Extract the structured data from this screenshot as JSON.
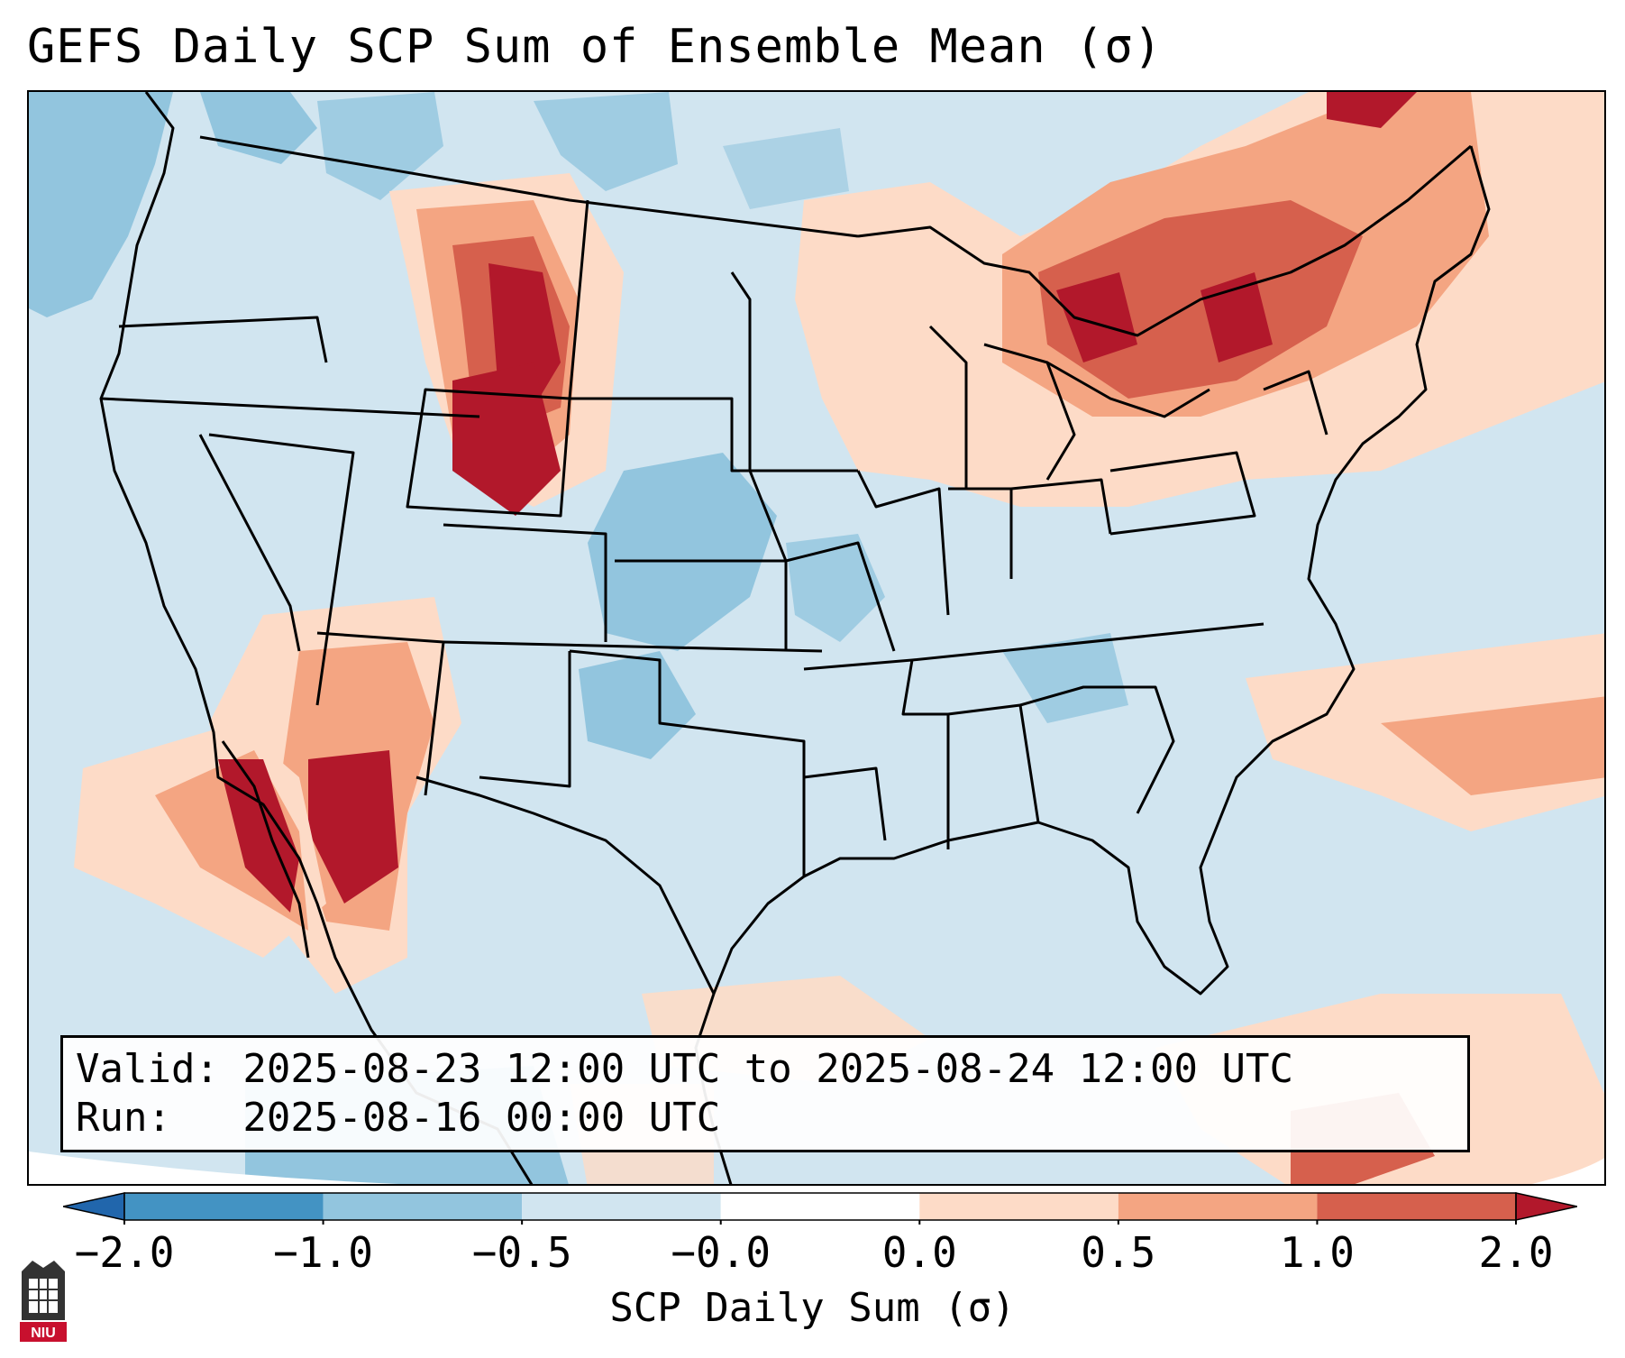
{
  "title": "GEFS Daily SCP Sum of Ensemble Mean (σ)",
  "info": {
    "valid_line": "Valid: 2025-08-23 12:00 UTC to 2025-08-24 12:00 UTC",
    "run_line": "Run:   2025-08-16 00:00 UTC"
  },
  "colorbar": {
    "label": "SCP Daily Sum (σ)",
    "tick_labels": [
      "−2.0",
      "−1.0",
      "−0.5",
      "−0.0",
      "0.0",
      "0.5",
      "1.0",
      "2.0"
    ],
    "colors": [
      "#2166ac",
      "#4393c3",
      "#92c5de",
      "#d1e5f0",
      "#ffffff",
      "#fddbc7",
      "#f4a582",
      "#d6604d",
      "#b2182b"
    ]
  },
  "logo": {
    "text": "NIU",
    "color": "#c8102e"
  },
  "colors": {
    "background_field": "#d1e5f0",
    "state_lines": "#000000"
  }
}
